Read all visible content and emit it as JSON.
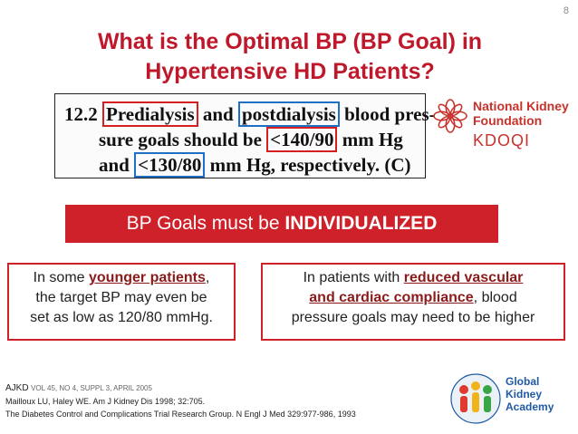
{
  "slide": {
    "number": "8"
  },
  "title": {
    "line1": "What is the Optimal BP (BP Goal) in",
    "line2": "Hypertensive HD Patients?"
  },
  "guideline": {
    "number": "12.2",
    "predialysis": "Predialysis",
    "and1": "and",
    "postdialysis": "postdialysis",
    "blood_pres": "blood pres-",
    "line2_pre": "sure goals should be",
    "target_pre": "<140/90",
    "line2_post": "mm Hg",
    "and2": "and",
    "target_post": "<130/80",
    "line3_post": "mm Hg, respectively. (C)"
  },
  "nkf_logo": {
    "name_line1": "National Kidney",
    "name_line2": "Foundation",
    "sub": "KDOQI"
  },
  "banner": {
    "prefix": "BP Goals must be",
    "emphasis": "INDIVIDUALIZED"
  },
  "left_box": {
    "pre": "In some",
    "highlight": "younger patients",
    "post": ",",
    "line2": "the target BP may even be",
    "line3": "set as low as 120/80 mmHg."
  },
  "right_box": {
    "pre": "In patients with",
    "highlight1": "reduced vascular",
    "highlight2": "and cardiac compliance",
    "post": ", blood",
    "line3": "pressure goals may need to be higher"
  },
  "references": {
    "journal": "AJKD",
    "journal_detail": "VOL 45, NO 4, SUPPL 3, APRIL 2005",
    "ref1": "Mailloux LU, Haley WE. Am J Kidney Dis 1998; 32:705.",
    "ref2": "The Diabetes Control and Complications Trial Research Group. N Engl J Med 329:977-986, 1993"
  },
  "gka_logo": {
    "line1": "Global",
    "line2": "Kidney",
    "line3": "Academy"
  },
  "colors": {
    "title": "#c0182b",
    "banner": "#cf2129",
    "highlight_red": "#d62020",
    "highlight_blue": "#1f6fc4"
  }
}
